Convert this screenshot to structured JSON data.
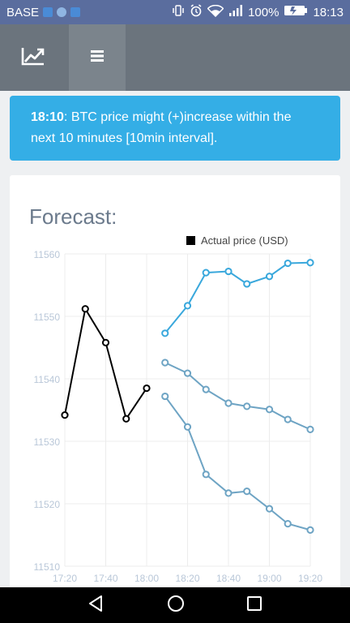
{
  "status_bar": {
    "carrier": "BASE",
    "battery": "100%",
    "time": "18:13",
    "icons": [
      "app-icon-1",
      "app-icon-2",
      "app-icon-3",
      "vibrate-icon",
      "alarm-icon",
      "wifi-icon",
      "signal-icon",
      "battery-icon"
    ]
  },
  "toolbar": {
    "icons": [
      "trending-chart-icon",
      "menu-icon"
    ]
  },
  "alert": {
    "time": "18:10",
    "message": ": BTC price might (+)increase within the next 10 minutes [10min interval].",
    "color": "#34aee6"
  },
  "card": {
    "title": "Forecast:"
  },
  "chart_data": {
    "type": "line",
    "legend": "Actual price (USD)",
    "legend_position": "top-right",
    "x_ticks": [
      "17:20",
      "17:40",
      "18:00",
      "18:20",
      "18:40",
      "19:00",
      "19:20"
    ],
    "y_ticks": [
      "11510",
      "11520",
      "11530",
      "11540",
      "11550",
      "11560"
    ],
    "ylim": [
      11510,
      11560
    ],
    "grid": true,
    "series": [
      {
        "name": "Actual price (USD)",
        "color": "#000000",
        "x": [
          "17:20",
          "17:30",
          "17:40",
          "17:50",
          "18:00"
        ],
        "y": [
          11534.2,
          11551.2,
          11545.8,
          11533.6,
          11538.5
        ]
      },
      {
        "color": "#3aa8dc",
        "x": [
          "18:09",
          "18:20",
          "18:29",
          "18:40",
          "18:49",
          "19:00",
          "19:09",
          "19:20"
        ],
        "y": [
          11547.3,
          11551.7,
          11557.0,
          11557.2,
          11555.2,
          11556.4,
          11558.5,
          11558.6
        ]
      },
      {
        "color": "#6ea4c4",
        "x": [
          "18:09",
          "18:20",
          "18:29",
          "18:40",
          "18:49",
          "19:00",
          "19:09",
          "19:20"
        ],
        "y": [
          11542.6,
          11540.9,
          11538.3,
          11536.1,
          11535.6,
          11535.1,
          11533.5,
          11531.9
        ]
      },
      {
        "color": "#6ea4c4",
        "x": [
          "18:09",
          "18:20",
          "18:29",
          "18:40",
          "18:49",
          "19:00",
          "19:09",
          "19:20"
        ],
        "y": [
          11537.2,
          11532.3,
          11524.7,
          11521.7,
          11522.0,
          11519.2,
          11516.8,
          11515.8
        ]
      }
    ]
  }
}
